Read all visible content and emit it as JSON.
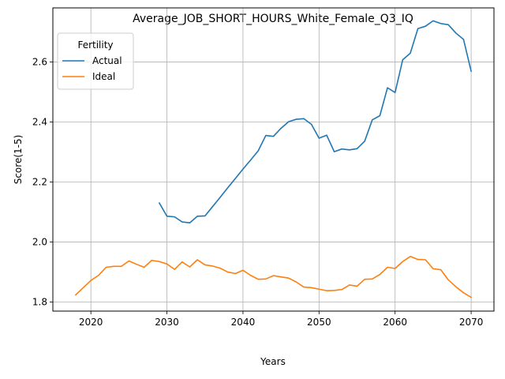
{
  "chart_data": {
    "type": "line",
    "title": "Average_JOB_SHORT_HOURS_White_Female_Q3_IQ",
    "xlabel": "Years",
    "ylabel": "Score(1-5)",
    "xlim": [
      2015,
      2073
    ],
    "ylim": [
      1.77,
      2.78
    ],
    "xticks": [
      2020,
      2030,
      2040,
      2050,
      2060,
      2070
    ],
    "yticks": [
      1.8,
      2.0,
      2.2,
      2.4,
      2.6
    ],
    "ytick_labels": [
      "1.8",
      "2.0",
      "2.2",
      "2.4",
      "2.6"
    ],
    "grid": true,
    "legend": {
      "title": "Fertility",
      "placement": "top-left"
    },
    "series": [
      {
        "name": "Actual",
        "color": "#1f77b4",
        "x": [
          2029,
          2030,
          2031,
          2032,
          2033,
          2034,
          2035,
          2036,
          2037,
          2038,
          2039,
          2040,
          2041,
          2042,
          2043,
          2044,
          2045,
          2046,
          2047,
          2048,
          2049,
          2050,
          2051,
          2052,
          2053,
          2054,
          2055,
          2056,
          2057,
          2058,
          2059,
          2060,
          2061,
          2062,
          2063,
          2064,
          2065,
          2066,
          2067,
          2068,
          2069,
          2070
        ],
        "values": [
          2.13,
          2.086,
          2.084,
          2.067,
          2.064,
          2.086,
          2.087,
          2.118,
          2.149,
          2.181,
          2.212,
          2.243,
          2.273,
          2.304,
          2.355,
          2.352,
          2.379,
          2.401,
          2.409,
          2.411,
          2.392,
          2.346,
          2.356,
          2.301,
          2.31,
          2.307,
          2.311,
          2.336,
          2.407,
          2.421,
          2.514,
          2.498,
          2.607,
          2.629,
          2.711,
          2.719,
          2.737,
          2.728,
          2.724,
          2.696,
          2.675,
          2.569
        ]
      },
      {
        "name": "Ideal",
        "color": "#ff7f0e",
        "x": [
          2018,
          2019,
          2020,
          2021,
          2022,
          2023,
          2024,
          2025,
          2026,
          2027,
          2028,
          2029,
          2030,
          2031,
          2032,
          2033,
          2034,
          2035,
          2036,
          2037,
          2038,
          2039,
          2040,
          2041,
          2042,
          2043,
          2044,
          2045,
          2046,
          2047,
          2048,
          2049,
          2050,
          2051,
          2052,
          2053,
          2054,
          2055,
          2056,
          2057,
          2058,
          2059,
          2060,
          2061,
          2062,
          2063,
          2064,
          2065,
          2066,
          2067,
          2068,
          2069,
          2070
        ],
        "values": [
          1.824,
          1.848,
          1.872,
          1.889,
          1.916,
          1.919,
          1.919,
          1.937,
          1.926,
          1.916,
          1.939,
          1.935,
          1.927,
          1.909,
          1.934,
          1.917,
          1.941,
          1.924,
          1.92,
          1.913,
          1.9,
          1.895,
          1.906,
          1.889,
          1.876,
          1.877,
          1.888,
          1.884,
          1.88,
          1.867,
          1.85,
          1.848,
          1.843,
          1.838,
          1.839,
          1.842,
          1.857,
          1.853,
          1.876,
          1.877,
          1.892,
          1.916,
          1.912,
          1.935,
          1.952,
          1.942,
          1.941,
          1.911,
          1.908,
          1.874,
          1.851,
          1.831,
          1.816
        ]
      }
    ]
  }
}
